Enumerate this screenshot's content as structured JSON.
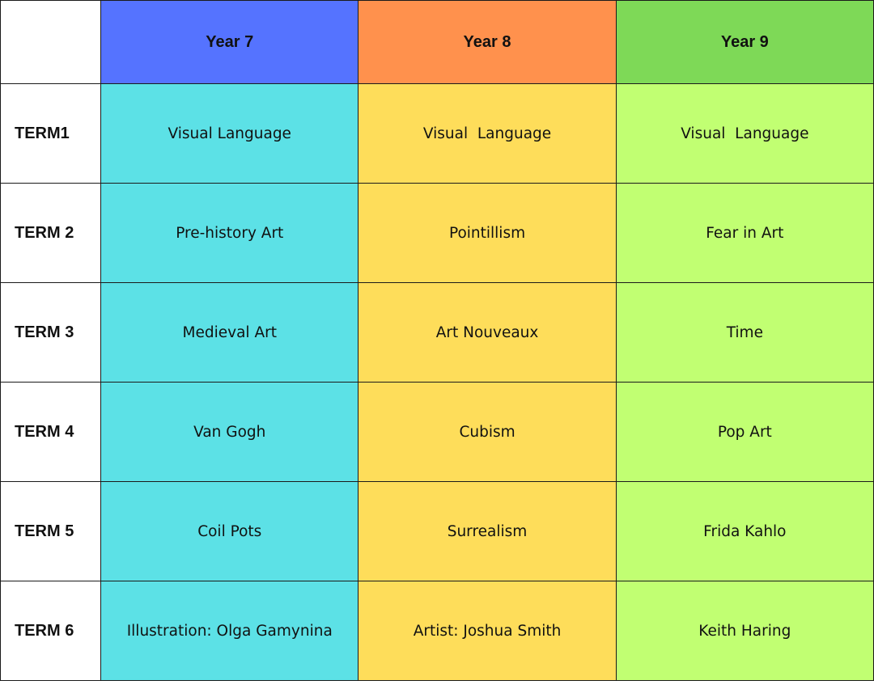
{
  "columns": [
    {
      "label": "Year 7",
      "header_color": "#5573FF",
      "cell_color": "#5CE1E6"
    },
    {
      "label": "Year 8",
      "header_color": "#FF914D",
      "cell_color": "#FEDD5A"
    },
    {
      "label": "Year 9",
      "header_color": "#7ED957",
      "cell_color": "#C1FF72"
    }
  ],
  "rows": [
    {
      "term": "TERM1",
      "topics": [
        "Visual Language",
        "Visual  Language",
        "Visual  Language"
      ]
    },
    {
      "term": "TERM 2",
      "topics": [
        "Pre-history Art",
        "Pointillism",
        "Fear in Art"
      ]
    },
    {
      "term": "TERM 3",
      "topics": [
        "Medieval Art",
        "Art Nouveaux",
        "Time"
      ]
    },
    {
      "term": "TERM 4",
      "topics": [
        "Van Gogh",
        "Cubism",
        "Pop Art"
      ]
    },
    {
      "term": "TERM 5",
      "topics": [
        "Coil Pots",
        "Surrealism",
        "Frida Kahlo"
      ]
    },
    {
      "term": "TERM 6",
      "topics": [
        "Illustration: Olga Gamynina",
        "Artist: Joshua Smith",
        "Keith Haring"
      ]
    }
  ]
}
